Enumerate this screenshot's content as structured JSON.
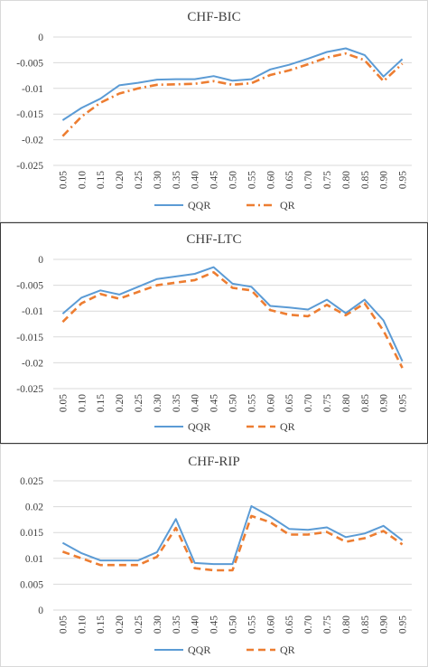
{
  "colors": {
    "qqr": "#5b9bd5",
    "qr": "#ed7d31",
    "grid": "#d9d9d9",
    "text": "#404040"
  },
  "chart_data": [
    {
      "type": "line",
      "title": "CHF-BIC",
      "xlabel": "",
      "ylabel": "",
      "x": [
        "0.05",
        "0.10",
        "0.15",
        "0.20",
        "0.25",
        "0.30",
        "0.35",
        "0.40",
        "0.45",
        "0.50",
        "0.55",
        "0.60",
        "0.65",
        "0.70",
        "0.75",
        "0.80",
        "0.85",
        "0.90",
        "0.95"
      ],
      "ylim": [
        -0.025,
        0
      ],
      "yticks": [
        0,
        -0.005,
        -0.01,
        -0.015,
        -0.02,
        -0.025
      ],
      "ytick_labels": [
        "0",
        "-0.005",
        "-0.01",
        "-0.015",
        "-0.02",
        "-0.025"
      ],
      "grid": true,
      "legend_position": "bottom",
      "series": [
        {
          "name": "QQR",
          "style": "solid",
          "values": [
            -0.0162,
            -0.0138,
            -0.012,
            -0.0094,
            -0.0089,
            -0.0083,
            -0.0082,
            -0.0082,
            -0.0076,
            -0.0085,
            -0.0082,
            -0.0063,
            -0.0054,
            -0.0042,
            -0.0029,
            -0.0022,
            -0.0035,
            -0.0077,
            -0.0043
          ]
        },
        {
          "name": "QR",
          "style": "dashdot",
          "values": [
            -0.0193,
            -0.0155,
            -0.0128,
            -0.011,
            -0.01,
            -0.0093,
            -0.0092,
            -0.0091,
            -0.0086,
            -0.0093,
            -0.009,
            -0.0074,
            -0.0065,
            -0.0053,
            -0.004,
            -0.0032,
            -0.0045,
            -0.0086,
            -0.0052
          ]
        }
      ]
    },
    {
      "type": "line",
      "title": "CHF-LTC",
      "xlabel": "",
      "ylabel": "",
      "x": [
        "0.05",
        "0.10",
        "0.15",
        "0.20",
        "0.25",
        "0.30",
        "0.35",
        "0.40",
        "0.45",
        "0.50",
        "0.55",
        "0.60",
        "0.65",
        "0.70",
        "0.75",
        "0.80",
        "0.85",
        "0.90",
        "0.95"
      ],
      "ylim": [
        -0.025,
        0
      ],
      "yticks": [
        0,
        -0.005,
        -0.01,
        -0.015,
        -0.02,
        -0.025
      ],
      "ytick_labels": [
        "0",
        "-0.005",
        "-0.01",
        "-0.015",
        "-0.02",
        "-0.025"
      ],
      "grid": true,
      "legend_position": "bottom",
      "series": [
        {
          "name": "QQR",
          "style": "solid",
          "values": [
            -0.0105,
            -0.0074,
            -0.006,
            -0.0068,
            -0.0053,
            -0.0038,
            -0.0033,
            -0.0028,
            -0.0015,
            -0.0047,
            -0.0053,
            -0.009,
            -0.0093,
            -0.0097,
            -0.0078,
            -0.0104,
            -0.0078,
            -0.0118,
            -0.0197
          ]
        },
        {
          "name": "QR",
          "style": "dashed",
          "values": [
            -0.0121,
            -0.0085,
            -0.0067,
            -0.0076,
            -0.0063,
            -0.005,
            -0.0045,
            -0.004,
            -0.0025,
            -0.0055,
            -0.006,
            -0.0098,
            -0.0107,
            -0.011,
            -0.0088,
            -0.0108,
            -0.0085,
            -0.0138,
            -0.021
          ]
        }
      ]
    },
    {
      "type": "line",
      "title": "CHF-RIP",
      "xlabel": "",
      "ylabel": "",
      "x": [
        "0.05",
        "0.10",
        "0.15",
        "0.20",
        "0.25",
        "0.30",
        "0.35",
        "0.40",
        "0.45",
        "0.50",
        "0.55",
        "0.60",
        "0.65",
        "0.70",
        "0.75",
        "0.80",
        "0.85",
        "0.90",
        "0.95"
      ],
      "ylim": [
        0,
        0.025
      ],
      "yticks": [
        0,
        0.005,
        0.01,
        0.015,
        0.02,
        0.025
      ],
      "ytick_labels": [
        "0",
        "0.005",
        "0.01",
        "0.015",
        "0.02",
        "0.025"
      ],
      "grid": true,
      "legend_position": "bottom",
      "series": [
        {
          "name": "QQR",
          "style": "solid",
          "values": [
            0.013,
            0.011,
            0.0096,
            0.0096,
            0.0096,
            0.0112,
            0.0176,
            0.0091,
            0.0089,
            0.0089,
            0.0201,
            0.0181,
            0.0157,
            0.0155,
            0.016,
            0.0141,
            0.0148,
            0.0163,
            0.0135
          ]
        },
        {
          "name": "QR",
          "style": "dashed",
          "values": [
            0.0113,
            0.01,
            0.0087,
            0.0087,
            0.0087,
            0.0103,
            0.0159,
            0.0081,
            0.0077,
            0.0077,
            0.0182,
            0.017,
            0.0146,
            0.0146,
            0.0151,
            0.0132,
            0.0139,
            0.0153,
            0.0127
          ]
        }
      ]
    }
  ]
}
